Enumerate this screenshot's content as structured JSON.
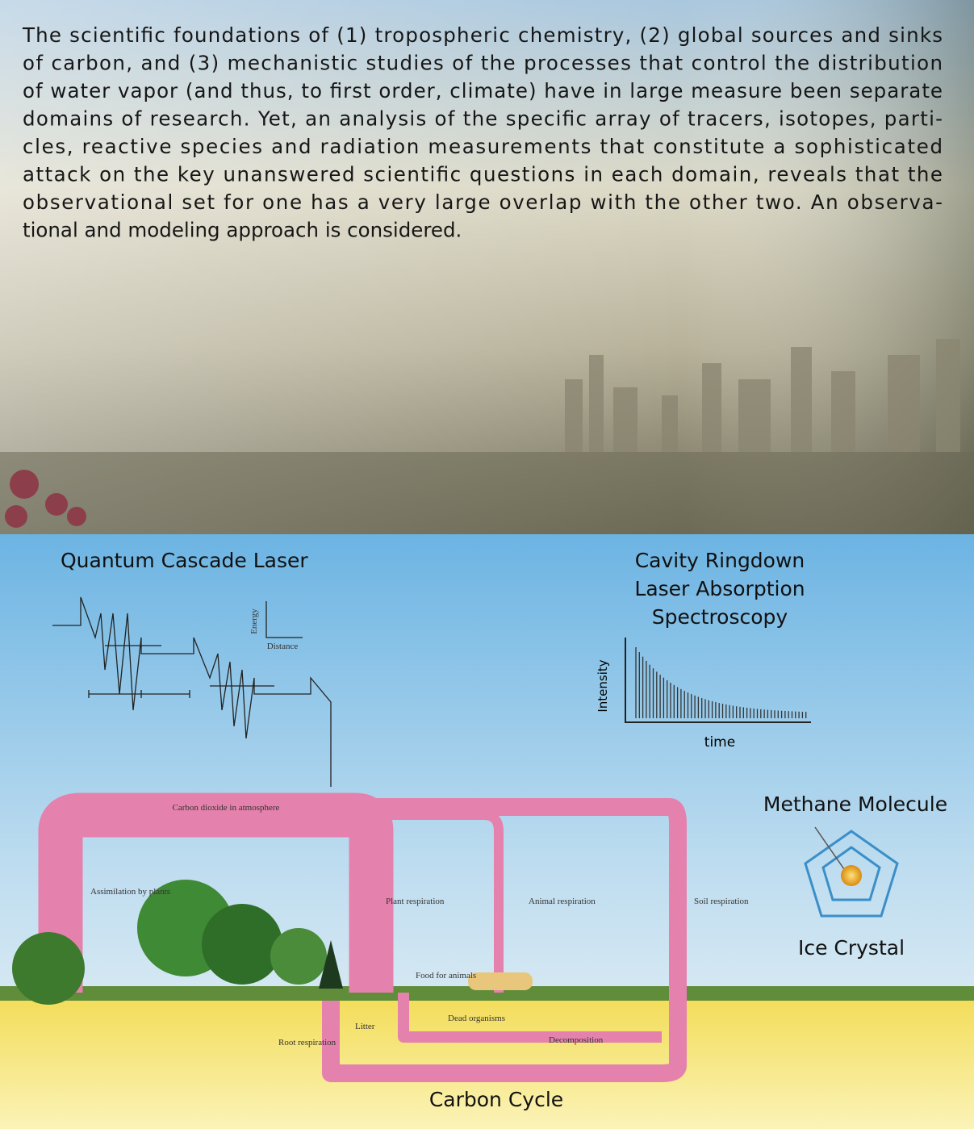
{
  "paragraph": {
    "lines": [
      "The scientific foundations of (1) tropospheric chemistry, (2) global sources and sinks",
      "of carbon, and (3) mechanistic studies of the processes that control the distribution",
      "of water vapor (and thus, to first order, climate) have in large measure been separate",
      "domains of research. Yet, an analysis of the specific array of tracers, isotopes, parti-",
      "cles, reactive species and radiation measurements that constitute a sophisticated",
      "attack on the key unanswered scientific questions in each domain, reveals that the",
      "observational set for one has a very large overlap with the other two. An observa-",
      "tional and modeling approach is considered."
    ]
  },
  "qcl": {
    "title": "Quantum Cascade Laser",
    "axis_y": "Energy",
    "axis_x": "Distance"
  },
  "crds": {
    "title_lines": [
      "Cavity Ringdown",
      "Laser Absorption",
      "Spectroscopy"
    ],
    "axis_y": "Intensity",
    "axis_x": "time"
  },
  "methane": {
    "title": "Methane Molecule",
    "caption": "Ice Crystal"
  },
  "carbon_cycle": {
    "title": "Carbon Cycle",
    "labels": [
      "Carbon dioxide in atmosphere",
      "Assimilation by plants",
      "Plant respiration",
      "Animal respiration",
      "Soil respiration",
      "Food for animals",
      "Dead organisms",
      "Litter",
      "Root respiration",
      "Decomposition"
    ]
  }
}
